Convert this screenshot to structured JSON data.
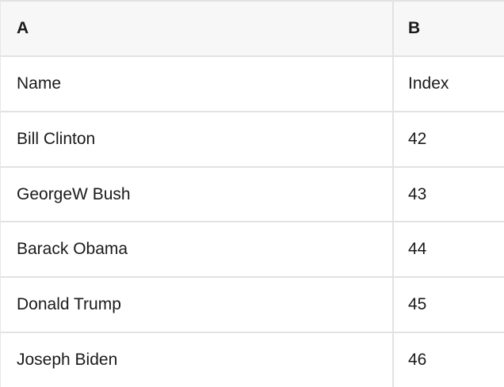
{
  "table": {
    "header": {
      "a": "A",
      "b": "B"
    },
    "rows": [
      {
        "a": "Name",
        "b": "Index"
      },
      {
        "a": "Bill Clinton",
        "b": "42"
      },
      {
        "a": "GeorgeW Bush",
        "b": "43"
      },
      {
        "a": "Barack Obama",
        "b": "44"
      },
      {
        "a": "Donald Trump",
        "b": "45"
      },
      {
        "a": "Joseph Biden",
        "b": "46"
      }
    ]
  },
  "colors": {
    "header_background": "#f7f7f7",
    "body_background": "#ffffff",
    "border": "#e2e2e2",
    "text": "#1a1a1a"
  }
}
